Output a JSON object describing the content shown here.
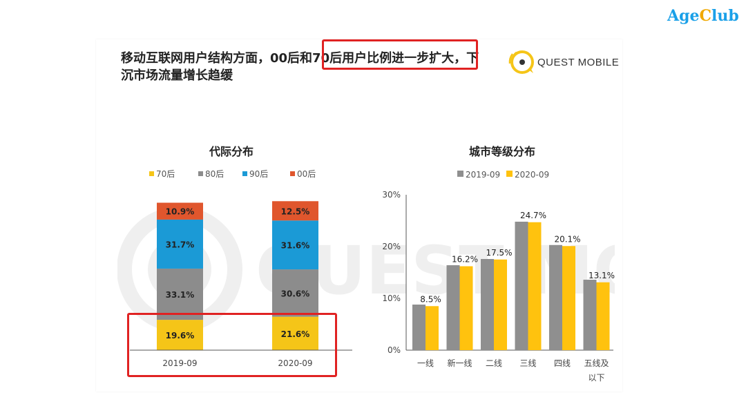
{
  "brand": {
    "part1": "Age",
    "part2": "C",
    "part3": "lub"
  },
  "headline": {
    "line1": "移动互联网用户结构方面，00后和70后用户比例进一步扩大，下",
    "line2": "沉市场流量增长趋缓"
  },
  "logo": {
    "text": "QUEST MOBILE"
  },
  "watermark": {
    "text": "QUEST MOBILE"
  },
  "colors": {
    "c70": "#f5c518",
    "c80": "#8c8c8c",
    "c90": "#1b9ad6",
    "c00": "#e0562d",
    "gray": "#8f8f8f",
    "yellow": "#ffc20e",
    "highlight": "#e02222"
  },
  "chart_data": [
    {
      "type": "bar",
      "stacked": true,
      "title": "代际分布",
      "categories": [
        "2019-09",
        "2020-09"
      ],
      "legend_placement": "top",
      "series": [
        {
          "name": "70后",
          "values": [
            19.6,
            21.6
          ],
          "labels": [
            "19.6%",
            "21.6%"
          ],
          "color": "#f5c518"
        },
        {
          "name": "80后",
          "values": [
            33.1,
            30.6
          ],
          "labels": [
            "33.1%",
            "30.6%"
          ],
          "color": "#8c8c8c"
        },
        {
          "name": "90后",
          "values": [
            31.7,
            31.6
          ],
          "labels": [
            "31.7%",
            "31.6%"
          ],
          "color": "#1b9ad6"
        },
        {
          "name": "00后",
          "values": [
            10.9,
            12.5
          ],
          "labels": [
            "10.9%",
            "12.5%"
          ],
          "color": "#e0562d"
        }
      ],
      "ylim": [
        0,
        100
      ]
    },
    {
      "type": "bar",
      "title": "城市等级分布",
      "categories": [
        "一线",
        "新一线",
        "二线",
        "三线",
        "四线",
        "五线及以下"
      ],
      "category_lines": [
        [
          "一线"
        ],
        [
          "新一线"
        ],
        [
          "二线"
        ],
        [
          "三线"
        ],
        [
          "四线"
        ],
        [
          "五线及",
          "以下"
        ]
      ],
      "legend_placement": "top",
      "series": [
        {
          "name": "2019-09",
          "values": [
            8.8,
            16.4,
            17.6,
            24.8,
            20.3,
            13.6
          ],
          "color": "#8f8f8f"
        },
        {
          "name": "2020-09",
          "values": [
            8.5,
            16.2,
            17.5,
            24.7,
            20.1,
            13.1
          ],
          "labels": [
            "8.5%",
            "16.2%",
            "17.5%",
            "24.7%",
            "20.1%",
            "13.1%"
          ],
          "color": "#ffc20e"
        }
      ],
      "yticks": [
        "0%",
        "10%",
        "20%",
        "30%"
      ],
      "ylim": [
        0,
        30
      ],
      "grid": false
    }
  ]
}
